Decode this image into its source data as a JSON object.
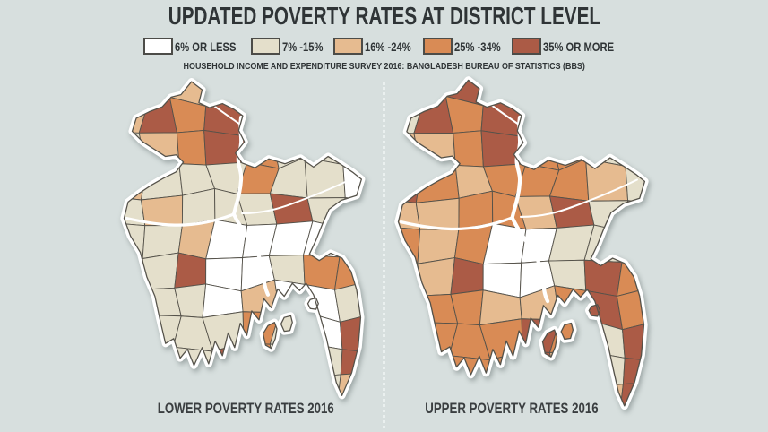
{
  "header": {
    "title": "UPDATED POVERTY RATES AT DISTRICT LEVEL",
    "source": "HOUSEHOLD INCOME AND EXPENDITURE SURVEY 2016: BANGLADESH BUREAU OF STATISTICS (BBS)"
  },
  "legend": {
    "items": [
      {
        "label": "6% OR LESS",
        "color": "#FFFFFF"
      },
      {
        "label": "7% -15%",
        "color": "#E4DFCB"
      },
      {
        "label": "16% -24%",
        "color": "#E6BB90"
      },
      {
        "label": "25% -34%",
        "color": "#D98B55"
      },
      {
        "label": "35% OR MORE",
        "color": "#AB5B46"
      }
    ]
  },
  "maps": {
    "background": "#D7DFDE",
    "border_color": "#55524A",
    "halo_color": "#FFFFFF",
    "region": "Bangladesh districts",
    "lower": {
      "caption": "LOWER POVERTY RATES 2016",
      "cells": [
        2,
        1,
        2,
        4,
        1,
        1,
        1,
        1,
        2,
        4,
        3,
        4,
        1,
        1,
        1,
        1,
        1,
        2,
        3,
        4,
        3,
        1,
        1,
        1,
        2,
        1,
        1,
        1,
        3,
        1,
        1,
        0,
        1,
        2,
        1,
        1,
        1,
        4,
        1,
        0,
        1,
        1,
        2,
        0,
        0,
        0,
        0,
        1,
        1,
        1,
        4,
        0,
        0,
        1,
        3,
        3,
        1,
        1,
        1,
        0,
        2,
        0,
        0,
        1,
        1,
        1,
        1,
        1,
        3,
        1,
        0,
        4,
        1,
        1,
        1,
        4,
        3,
        1,
        1,
        4,
        1,
        1,
        1,
        1,
        1,
        1,
        1,
        2
      ]
    },
    "upper": {
      "caption": "UPPER POVERTY RATES 2016",
      "cells": [
        2,
        3,
        4,
        4,
        1,
        1,
        1,
        1,
        1,
        4,
        3,
        4,
        1,
        1,
        1,
        1,
        2,
        2,
        3,
        4,
        3,
        3,
        1,
        1,
        4,
        3,
        2,
        3,
        3,
        3,
        2,
        1,
        2,
        2,
        3,
        3,
        2,
        4,
        1,
        1,
        3,
        2,
        3,
        0,
        0,
        1,
        1,
        1,
        3,
        2,
        4,
        0,
        0,
        1,
        4,
        3,
        2,
        3,
        3,
        2,
        2,
        3,
        4,
        3,
        2,
        3,
        3,
        3,
        4,
        3,
        1,
        4,
        1,
        2,
        3,
        3,
        4,
        2,
        1,
        4,
        1,
        1,
        2,
        3,
        3,
        2,
        2,
        4
      ]
    }
  }
}
